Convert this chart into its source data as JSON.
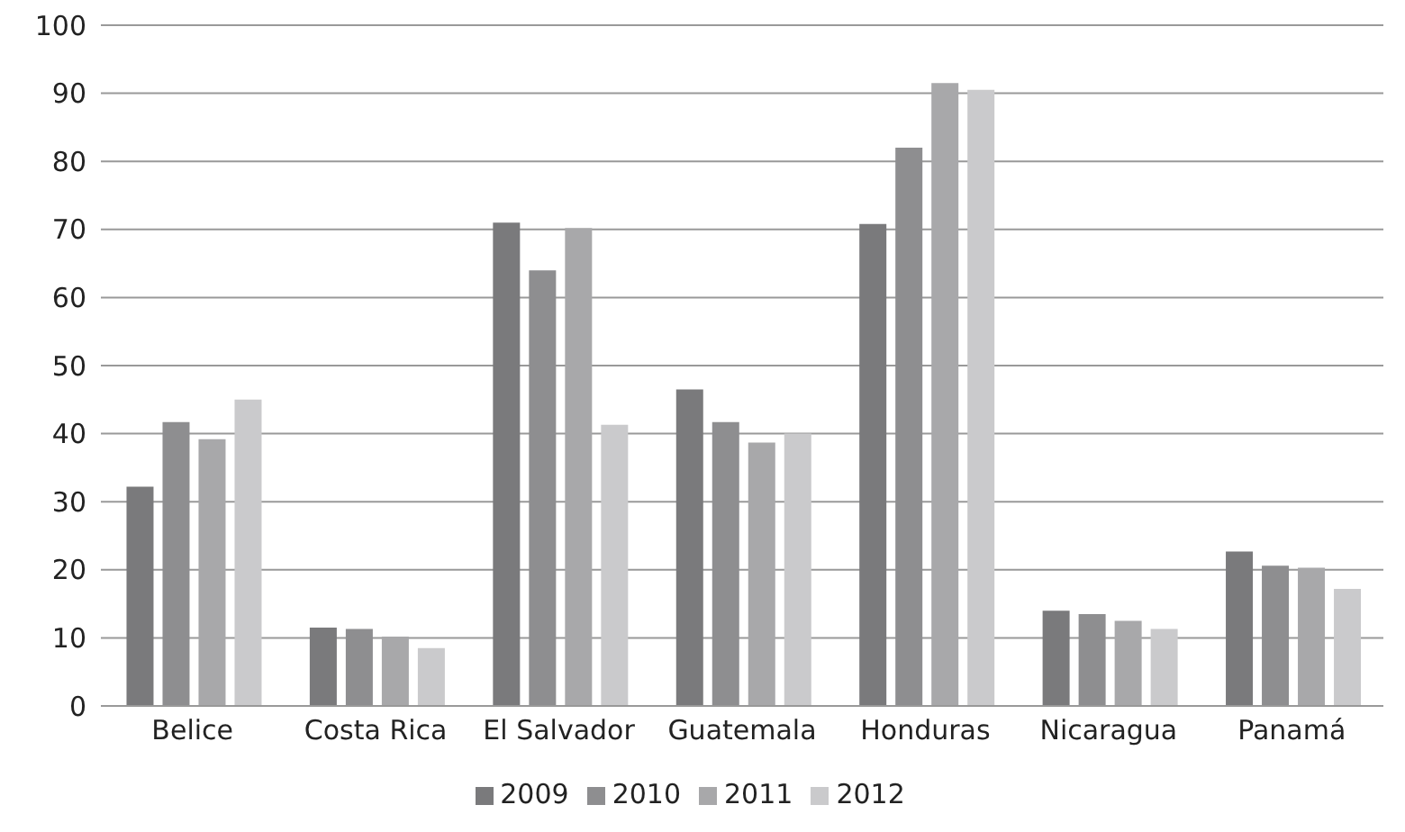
{
  "chart_data": {
    "type": "bar",
    "categories": [
      "Belice",
      "Costa Rica",
      "El Salvador",
      "Guatemala",
      "Honduras",
      "Nicaragua",
      "Panamá"
    ],
    "series": [
      {
        "name": "2009",
        "color": "#7a7a7c",
        "values": [
          32.2,
          11.5,
          71,
          46.5,
          70.8,
          14,
          22.7
        ]
      },
      {
        "name": "2010",
        "color": "#8e8e90",
        "values": [
          41.7,
          11.3,
          64,
          41.7,
          82,
          13.5,
          20.6
        ]
      },
      {
        "name": "2011",
        "color": "#a8a8aa",
        "values": [
          39.2,
          10.2,
          70.2,
          38.7,
          91.5,
          12.5,
          20.3
        ]
      },
      {
        "name": "2012",
        "color": "#cacacc",
        "values": [
          45,
          8.5,
          41.3,
          40,
          90.5,
          11.3,
          17.2
        ]
      }
    ],
    "ylim": [
      0,
      100
    ],
    "yticks": [
      0,
      10,
      20,
      30,
      40,
      50,
      60,
      70,
      80,
      90,
      100
    ],
    "grid": "y",
    "legend": "bottom"
  }
}
